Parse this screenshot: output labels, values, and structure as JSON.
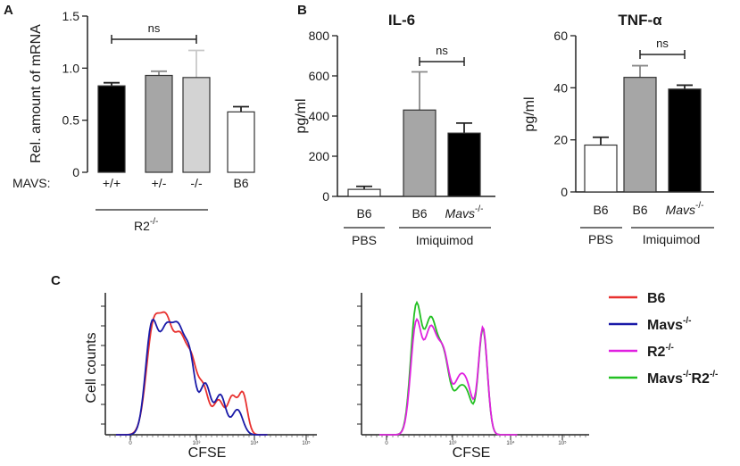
{
  "panel_labels": {
    "a": "A",
    "b": "B",
    "c": "C"
  },
  "chart_data": [
    {
      "id": "A",
      "type": "bar",
      "ylabel": "Rel. amount of mRNA",
      "ylim": [
        0,
        1.5
      ],
      "yticks": [
        "0",
        "0.5",
        "1.0",
        "1.5"
      ],
      "group_prefix": "MAVS:",
      "categories": [
        "+/+",
        "+/-",
        "-/-",
        "B6"
      ],
      "values": [
        0.83,
        0.93,
        0.91,
        0.58
      ],
      "errors": [
        0.03,
        0.04,
        0.26,
        0.05
      ],
      "fills": [
        "#000000",
        "#a6a6a6",
        "#d3d3d3",
        "#ffffff"
      ],
      "group_label": {
        "base": "R2",
        "sup": "-/-"
      },
      "significance": "ns"
    },
    {
      "id": "B-IL6",
      "type": "bar",
      "title": "IL-6",
      "ylabel": "pg/ml",
      "ylim": [
        0,
        800
      ],
      "yticks": [
        "0",
        "200",
        "400",
        "600",
        "800"
      ],
      "categories": [
        "B6",
        "B6",
        "Mavs"
      ],
      "category_sup": [
        "",
        "",
        "-/-"
      ],
      "values": [
        35,
        430,
        315
      ],
      "errors": [
        15,
        190,
        50
      ],
      "fills": [
        "#ffffff",
        "#a6a6a6",
        "#000000"
      ],
      "groups": [
        "PBS",
        "Imiquimod"
      ],
      "significance": "ns"
    },
    {
      "id": "B-TNF",
      "type": "bar",
      "title": "TNF-α",
      "ylabel": "pg/ml",
      "ylim": [
        0,
        60
      ],
      "yticks": [
        "0",
        "20",
        "40",
        "60"
      ],
      "categories": [
        "B6",
        "B6",
        "Mavs"
      ],
      "category_sup": [
        "",
        "",
        "-/-"
      ],
      "values": [
        18,
        44,
        39.5
      ],
      "errors": [
        3,
        4.5,
        1.5
      ],
      "fills": [
        "#ffffff",
        "#a6a6a6",
        "#000000"
      ],
      "groups": [
        "PBS",
        "Imiquimod"
      ],
      "significance": "ns"
    },
    {
      "id": "C-left",
      "type": "line",
      "ylabel": "Cell counts",
      "xlabel": "CFSE",
      "xticks": [
        "0",
        "10³",
        "10⁴",
        "10⁵"
      ],
      "series": [
        {
          "name": "B6",
          "color": "#e8312f"
        },
        {
          "name": "Mavs-/-",
          "color": "#1a1aa8"
        }
      ]
    },
    {
      "id": "C-right",
      "type": "line",
      "xlabel": "CFSE",
      "xticks": [
        "0",
        "10³",
        "10⁴",
        "10⁵"
      ],
      "series": [
        {
          "name": "R2-/-",
          "color": "#e020e0"
        },
        {
          "name": "Mavs-/-R2-/-",
          "color": "#22c022"
        }
      ]
    }
  ],
  "legend": [
    {
      "base": "B6",
      "sup": "",
      "base2": "",
      "sup2": "",
      "color": "#e8312f"
    },
    {
      "base": "Mavs",
      "sup": "-/-",
      "base2": "",
      "sup2": "",
      "color": "#1a1aa8"
    },
    {
      "base": "R2",
      "sup": "-/-",
      "base2": "",
      "sup2": "",
      "color": "#e020e0"
    },
    {
      "base": "Mavs",
      "sup": "-/-",
      "base2": "R2",
      "sup2": "-/-",
      "color": "#22c022"
    }
  ]
}
